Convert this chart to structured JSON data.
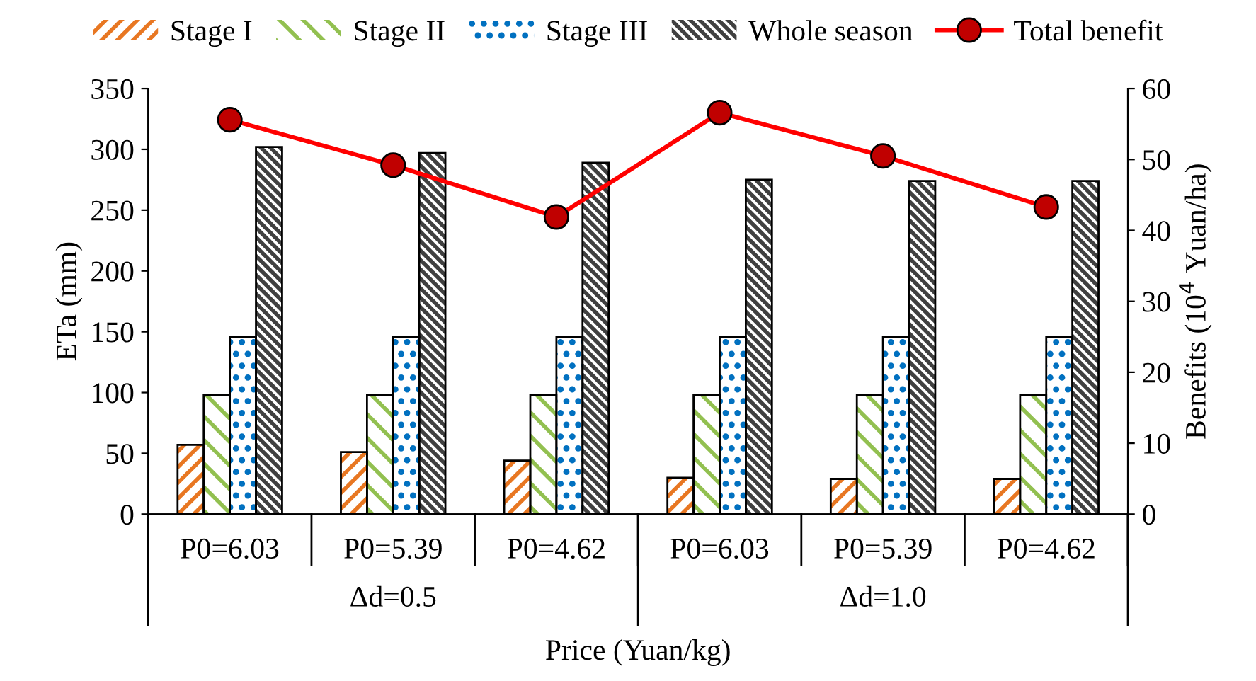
{
  "chart_data": {
    "type": "bar",
    "xlabel": "Price (Yuan/kg)",
    "ylabel": "ETa (mm)",
    "y2label": "Benefits (10$^{4}$ Yuan/ha)",
    "categories": [
      "P0=6.03",
      "P0=5.39",
      "P0=4.62",
      "P0=6.03",
      "P0=5.39",
      "P0=4.62"
    ],
    "annotations": [
      "Δd=0.5",
      "Δd=1.0"
    ],
    "series": [
      {
        "name": "Stage I",
        "color": "#e87722",
        "values": [
          57,
          51,
          44,
          30,
          29,
          29
        ]
      },
      {
        "name": "Stage II",
        "color": "#92c050",
        "values": [
          98,
          98,
          98,
          98,
          98,
          98
        ]
      },
      {
        "name": "Stage III",
        "color": "#0070c0",
        "values": [
          146,
          146,
          146,
          146,
          146,
          146
        ]
      },
      {
        "name": "Whole season",
        "color": "#404040",
        "values": [
          302,
          297,
          289,
          275,
          274,
          274
        ]
      },
      {
        "name": "Total benefit",
        "type": "line",
        "axis": "y2",
        "color": "#ff0000",
        "marker": "circle",
        "values": [
          55.6,
          49.2,
          41.9,
          56.6,
          50.5,
          43.3
        ]
      }
    ],
    "ylim": [
      0,
      350
    ],
    "yticks": [
      0,
      50,
      100,
      150,
      200,
      250,
      300,
      350
    ],
    "y2lim": [
      0,
      60
    ],
    "y2ticks": [
      0,
      10,
      20,
      30,
      40,
      50,
      60
    ],
    "grid": false,
    "legend": "top"
  }
}
